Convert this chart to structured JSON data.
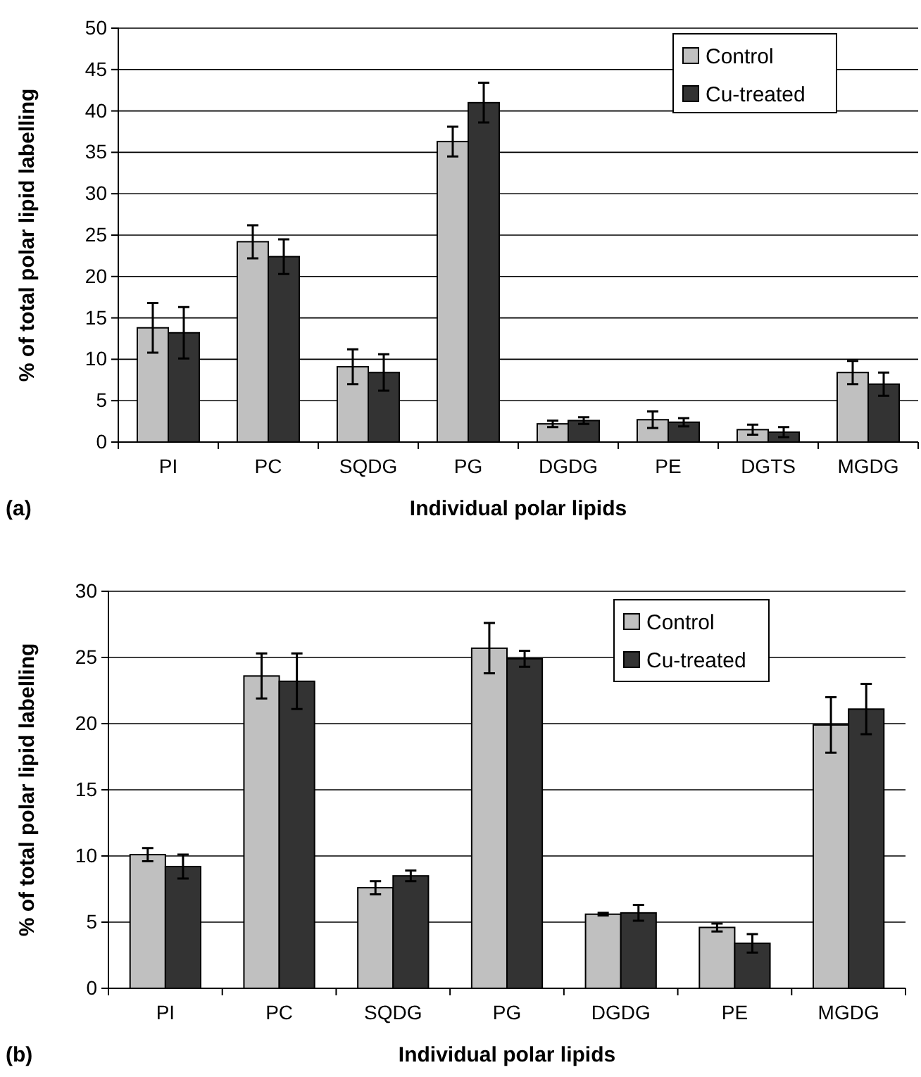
{
  "chart_data": [
    {
      "type": "bar",
      "categories": [
        "PI",
        "PC",
        "SQDG",
        "PG",
        "DGDG",
        "PE",
        "DGTS",
        "MGDG"
      ],
      "xlabel": "Individual polar lipids",
      "ylabel": "% of total polar lipid labelling",
      "ylim": [
        0,
        50
      ],
      "yticks": [
        0,
        5,
        10,
        15,
        20,
        25,
        30,
        35,
        40,
        45,
        50
      ],
      "grid": "y",
      "legend": "top right",
      "annotations": [
        "(a)"
      ],
      "series": [
        {
          "name": "Control",
          "color": "#c0c0c0",
          "values": [
            13.8,
            24.2,
            9.1,
            36.3,
            2.2,
            2.7,
            1.5,
            8.4
          ],
          "errors": [
            3.0,
            2.0,
            2.1,
            1.8,
            0.4,
            1.0,
            0.6,
            1.4
          ]
        },
        {
          "name": "Cu-treated",
          "color": "#333333",
          "values": [
            13.2,
            22.4,
            8.4,
            41.0,
            2.6,
            2.4,
            1.2,
            7.0
          ],
          "errors": [
            3.1,
            2.1,
            2.2,
            2.4,
            0.4,
            0.5,
            0.6,
            1.4
          ]
        }
      ]
    },
    {
      "type": "bar",
      "categories": [
        "PI",
        "PC",
        "SQDG",
        "PG",
        "DGDG",
        "PE",
        "MGDG"
      ],
      "xlabel": "Individual polar lipids",
      "ylabel": "% of total polar lipid labelling",
      "ylim": [
        0,
        30
      ],
      "yticks": [
        0,
        5,
        10,
        15,
        20,
        25,
        30
      ],
      "grid": "y",
      "legend": "top right",
      "annotations": [
        "(b)"
      ],
      "series": [
        {
          "name": "Control",
          "color": "#c0c0c0",
          "values": [
            10.1,
            23.6,
            7.6,
            25.7,
            5.6,
            4.6,
            19.9
          ],
          "errors": [
            0.5,
            1.7,
            0.5,
            1.9,
            0.1,
            0.3,
            2.1
          ]
        },
        {
          "name": "Cu-treated",
          "color": "#333333",
          "values": [
            9.2,
            23.2,
            8.5,
            24.9,
            5.7,
            3.4,
            21.1
          ],
          "errors": [
            0.9,
            2.1,
            0.4,
            0.6,
            0.6,
            0.7,
            1.9
          ]
        }
      ]
    }
  ]
}
